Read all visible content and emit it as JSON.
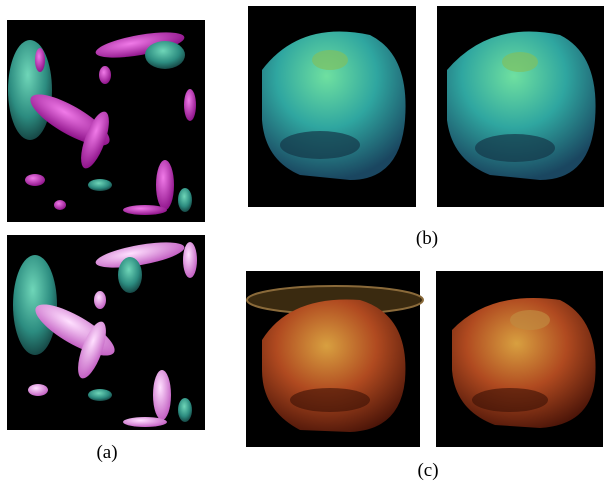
{
  "figure": {
    "panels": [
      {
        "label": "(a)"
      },
      {
        "label": "(b)"
      },
      {
        "label": "(c)"
      }
    ]
  }
}
